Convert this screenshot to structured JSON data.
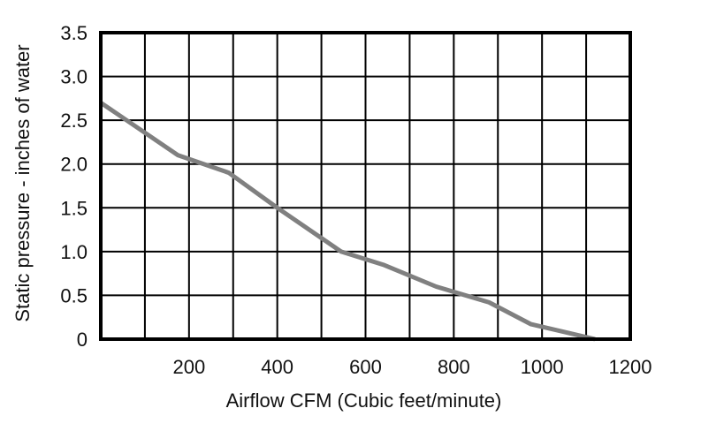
{
  "chart_data": {
    "type": "line",
    "title": "",
    "xlabel": "Airflow CFM (Cubic feet/minute)",
    "ylabel": "Static pressure - inches of water",
    "xlim": [
      0,
      1200
    ],
    "ylim": [
      0,
      3.5
    ],
    "x_tick_labels": [
      {
        "value": 200,
        "label": "200"
      },
      {
        "value": 400,
        "label": "400"
      },
      {
        "value": 600,
        "label": "600"
      },
      {
        "value": 800,
        "label": "800"
      },
      {
        "value": 1000,
        "label": "1000"
      },
      {
        "value": 1200,
        "label": "1200"
      }
    ],
    "y_tick_labels": [
      {
        "value": 0,
        "label": "0"
      },
      {
        "value": 0.5,
        "label": "0.5"
      },
      {
        "value": 1.0,
        "label": "1.0"
      },
      {
        "value": 1.5,
        "label": "1.5"
      },
      {
        "value": 2.0,
        "label": "2.0"
      },
      {
        "value": 2.5,
        "label": "2.5"
      },
      {
        "value": 3.0,
        "label": "3.0"
      },
      {
        "value": 3.5,
        "label": "3.5"
      }
    ],
    "grid": true,
    "grid_x_step": 100,
    "grid_y_step": 0.5,
    "series": [
      {
        "x": [
          0,
          175,
          290,
          400,
          545,
          640,
          760,
          880,
          975,
          1120
        ],
        "y": [
          2.7,
          2.1,
          1.9,
          1.5,
          1.0,
          0.85,
          0.6,
          0.42,
          0.17,
          0.0
        ],
        "color": "#808080"
      }
    ],
    "colors": {
      "line": "#808080",
      "grid": "#000000",
      "text": "#111111"
    }
  }
}
